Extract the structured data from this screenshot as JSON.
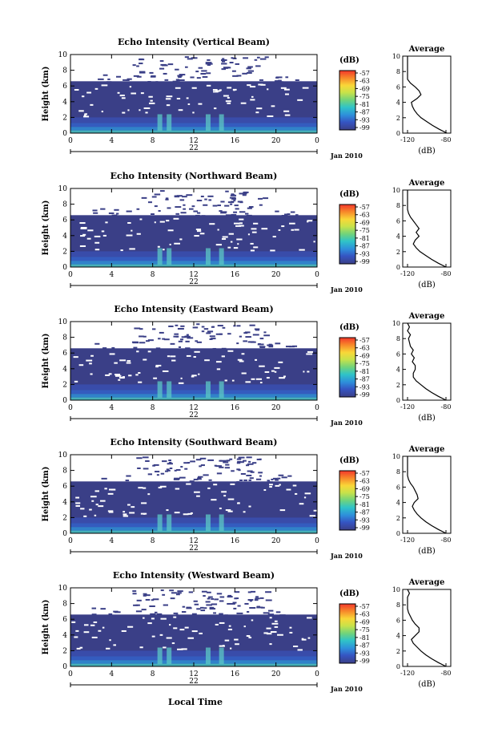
{
  "figure": {
    "x_axis_label": "Local Time",
    "date_day": "22",
    "date_month_year": "Jan 2010"
  },
  "chart_data": [
    {
      "type": "heatmap",
      "title": "Echo Intensity (Vertical Beam)",
      "xlabel": "",
      "ylabel": "Height (km)",
      "xlim": [
        0,
        24
      ],
      "ylim": [
        0,
        10
      ],
      "x_ticks": [
        "0",
        "4",
        "8",
        "12",
        "16",
        "20",
        "0"
      ],
      "y_ticks": [
        "0",
        "2",
        "4",
        "6",
        "8",
        "10"
      ],
      "colorbar": {
        "label": "(dB)",
        "ticks": [
          "-57",
          "-63",
          "-69",
          "-75",
          "-81",
          "-87",
          "-93",
          "-99"
        ]
      },
      "profile": {
        "title": "Average",
        "xlabel": "(dB)",
        "x_ticks": [
          "-120",
          "-80"
        ],
        "xlim": [
          -125,
          -75
        ],
        "heights": [
          0,
          0.5,
          1,
          1.5,
          2,
          2.5,
          3,
          3.5,
          4,
          4.5,
          5,
          5.5,
          6,
          6.5,
          7,
          7.5,
          8,
          8.5,
          9,
          9.5,
          10
        ],
        "values": [
          -79,
          -87,
          -94,
          -100,
          -106,
          -110,
          -113,
          -115,
          -116,
          -110,
          -106,
          -108,
          -112,
          -117,
          -120,
          -120,
          -120,
          -120,
          -120,
          -120,
          -120
        ]
      }
    },
    {
      "type": "heatmap",
      "title": "Echo Intensity (Northward Beam)",
      "xlabel": "",
      "ylabel": "Height (km)",
      "xlim": [
        0,
        24
      ],
      "ylim": [
        0,
        10
      ],
      "x_ticks": [
        "0",
        "4",
        "8",
        "12",
        "16",
        "20",
        "0"
      ],
      "y_ticks": [
        "0",
        "2",
        "4",
        "6",
        "8",
        "10"
      ],
      "colorbar": {
        "label": "(dB)",
        "ticks": [
          "-57",
          "-63",
          "-69",
          "-75",
          "-81",
          "-87",
          "-93",
          "-99"
        ]
      },
      "profile": {
        "title": "Average",
        "xlabel": "(dB)",
        "x_ticks": [
          "-120",
          "-80"
        ],
        "xlim": [
          -125,
          -75
        ],
        "heights": [
          0,
          0.5,
          1,
          1.5,
          2,
          2.5,
          3,
          3.5,
          4,
          4.5,
          5,
          5.5,
          6,
          6.5,
          7,
          7.5,
          8,
          8.5,
          9,
          9.5,
          10
        ],
        "values": [
          -80,
          -88,
          -95,
          -101,
          -107,
          -111,
          -114,
          -112,
          -108,
          -111,
          -108,
          -111,
          -114,
          -117,
          -119,
          -120,
          -120,
          -120,
          -120,
          -120,
          -120
        ]
      }
    },
    {
      "type": "heatmap",
      "title": "Echo Intensity (Eastward Beam)",
      "xlabel": "",
      "ylabel": "Height (km)",
      "xlim": [
        0,
        24
      ],
      "ylim": [
        0,
        10
      ],
      "x_ticks": [
        "0",
        "4",
        "8",
        "12",
        "16",
        "20",
        "0"
      ],
      "y_ticks": [
        "0",
        "2",
        "4",
        "6",
        "8",
        "10"
      ],
      "colorbar": {
        "label": "(dB)",
        "ticks": [
          "-57",
          "-63",
          "-69",
          "-75",
          "-81",
          "-87",
          "-93",
          "-99"
        ]
      },
      "profile": {
        "title": "Average",
        "xlabel": "(dB)",
        "x_ticks": [
          "-120",
          "-80"
        ],
        "xlim": [
          -125,
          -75
        ],
        "heights": [
          0,
          0.5,
          1,
          1.5,
          2,
          2.5,
          3,
          3.5,
          4,
          4.5,
          5,
          5.5,
          6,
          6.5,
          7,
          7.5,
          8,
          8.5,
          9,
          9.5,
          10
        ],
        "values": [
          -80,
          -88,
          -95,
          -101,
          -106,
          -111,
          -114,
          -114,
          -112,
          -112,
          -115,
          -113,
          -116,
          -114,
          -117,
          -118,
          -119,
          -117,
          -120,
          -118,
          -120
        ]
      }
    },
    {
      "type": "heatmap",
      "title": "Echo Intensity (Southward Beam)",
      "xlabel": "",
      "ylabel": "Height (km)",
      "xlim": [
        0,
        24
      ],
      "ylim": [
        0,
        10
      ],
      "x_ticks": [
        "0",
        "4",
        "8",
        "12",
        "16",
        "20",
        "0"
      ],
      "y_ticks": [
        "0",
        "2",
        "4",
        "6",
        "8",
        "10"
      ],
      "colorbar": {
        "label": "(dB)",
        "ticks": [
          "-57",
          "-63",
          "-69",
          "-75",
          "-81",
          "-87",
          "-93",
          "-99"
        ]
      },
      "profile": {
        "title": "Average",
        "xlabel": "(dB)",
        "x_ticks": [
          "-120",
          "-80"
        ],
        "xlim": [
          -125,
          -75
        ],
        "heights": [
          0,
          0.5,
          1,
          1.5,
          2,
          2.5,
          3,
          3.5,
          4,
          4.5,
          5,
          5.5,
          6,
          6.5,
          7,
          7.5,
          8,
          8.5,
          9,
          9.5,
          10
        ],
        "values": [
          -80,
          -88,
          -95,
          -101,
          -106,
          -110,
          -113,
          -115,
          -113,
          -109,
          -110,
          -112,
          -114,
          -117,
          -119,
          -120,
          -120,
          -120,
          -120,
          -120,
          -120
        ]
      }
    },
    {
      "type": "heatmap",
      "title": "Echo Intensity (Westward Beam)",
      "xlabel": "",
      "ylabel": "Height (km)",
      "xlim": [
        0,
        24
      ],
      "ylim": [
        0,
        10
      ],
      "x_ticks": [
        "0",
        "4",
        "8",
        "12",
        "16",
        "20",
        "0"
      ],
      "y_ticks": [
        "0",
        "2",
        "4",
        "6",
        "8",
        "10"
      ],
      "colorbar": {
        "label": "(dB)",
        "ticks": [
          "-57",
          "-63",
          "-69",
          "-75",
          "-81",
          "-87",
          "-93",
          "-99"
        ]
      },
      "profile": {
        "title": "Average",
        "xlabel": "(dB)",
        "x_ticks": [
          "-120",
          "-80"
        ],
        "xlim": [
          -125,
          -75
        ],
        "heights": [
          0,
          0.5,
          1,
          1.5,
          2,
          2.5,
          3,
          3.5,
          4,
          4.5,
          5,
          5.5,
          6,
          6.5,
          7,
          7.5,
          8,
          8.5,
          9,
          9.5,
          10
        ],
        "values": [
          -80,
          -88,
          -95,
          -101,
          -106,
          -110,
          -114,
          -116,
          -112,
          -108,
          -108,
          -112,
          -115,
          -117,
          -119,
          -120,
          -120,
          -120,
          -120,
          -118,
          -120
        ]
      }
    }
  ],
  "colors": {
    "background_echo": "#3a3f87",
    "colorbar_stops": [
      "#f2372b",
      "#f7862a",
      "#f9d738",
      "#c8e24a",
      "#6fd37c",
      "#2fc3c8",
      "#2e8fdb",
      "#3554c2",
      "#3a3f87"
    ]
  }
}
